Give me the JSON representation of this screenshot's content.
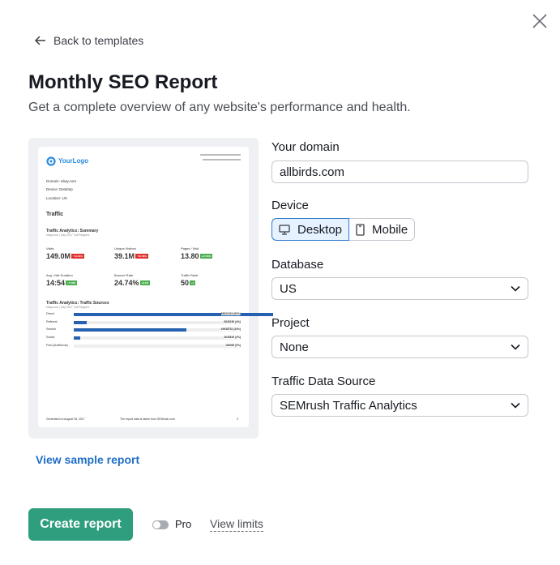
{
  "header": {
    "back_label": "Back to templates",
    "title": "Monthly SEO Report",
    "subtitle": "Get a complete overview of any website's performance and health."
  },
  "preview": {
    "logo": "YourLogo",
    "domain": "Domain: ebay.com",
    "device": "Device: Desktop",
    "location": "Location: US",
    "section": "Traffic",
    "summary_title": "Traffic Analytics: Summary",
    "summary_sub": "ebay.com | July 2017 | All Regions",
    "metrics": [
      {
        "label": "Visits",
        "value": "149.0M",
        "delta": "−14.61%",
        "color": "#e0322d"
      },
      {
        "label": "Unique Visitors",
        "value": "39.1M",
        "delta": "−20.58%",
        "color": "#e0322d"
      },
      {
        "label": "Pages / Visit",
        "value": "13.80",
        "delta": "+27.80%",
        "color": "#4caf50"
      },
      {
        "label": "Avg. Visit Duration",
        "value": "14:54",
        "delta": "+7.58%",
        "color": "#4caf50"
      },
      {
        "label": "Bounce Rate",
        "value": "24.74%",
        "delta": "+8.2%",
        "color": "#4caf50"
      },
      {
        "label": "Traffic Rank",
        "value": "50",
        "delta": "+4",
        "color": "#4caf50"
      }
    ],
    "sources_title": "Traffic Analytics: Traffic Sources",
    "sources_sub": "ebay.com | July 2017 | All Regions",
    "sources": [
      {
        "label": "Direct",
        "value": "89631303 (60%)",
        "share": 60
      },
      {
        "label": "Referral",
        "value": "5628159 (4%)",
        "share": 4
      },
      {
        "label": "Search",
        "value": "49938752 (34%)",
        "share": 34
      },
      {
        "label": "Social",
        "value": "3643816 (2%)",
        "share": 2
      },
      {
        "label": "Paid (AdWords)",
        "value": "189408 (0%)",
        "share": 0
      }
    ],
    "footer_left": "Generated on August 28, 2017",
    "footer_mid": "The report data is taken from SEMrush.com",
    "footer_page": "2"
  },
  "form": {
    "domain_label": "Your domain",
    "domain_value": "allbirds.com",
    "device_label": "Device",
    "device_options": [
      "Desktop",
      "Mobile"
    ],
    "device_selected": "Desktop",
    "database_label": "Database",
    "database_value": "US",
    "project_label": "Project",
    "project_value": "None",
    "source_label": "Traffic Data Source",
    "source_value": "SEMrush Traffic Analytics"
  },
  "footer": {
    "sample_link": "View sample report",
    "create_label": "Create report",
    "pro_label": "Pro",
    "pro_enabled": false,
    "limits_link": "View limits"
  },
  "colors": {
    "accent": "#2e9e7e",
    "link": "#1f6fc6",
    "bar": "#2561b0"
  }
}
